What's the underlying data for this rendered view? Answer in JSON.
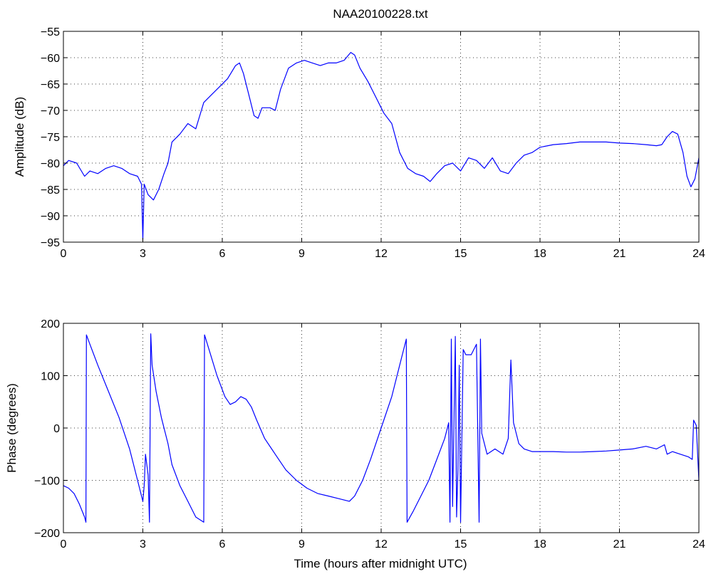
{
  "chart_data": [
    {
      "type": "line",
      "title": "NAA20100228.txt",
      "xlabel": "",
      "ylabel": "Amplitude (dB)",
      "xlim": [
        0,
        24
      ],
      "ylim": [
        -95,
        -55
      ],
      "xticks": [
        "0",
        "3",
        "6",
        "9",
        "12",
        "15",
        "18",
        "21",
        "24"
      ],
      "yticks": [
        "-55",
        "-60",
        "-65",
        "-70",
        "-75",
        "-80",
        "-85",
        "-90",
        "-95"
      ],
      "grid": true,
      "color": "#0000ff",
      "series": [
        {
          "x": [
            0,
            0.2,
            0.5,
            0.8,
            1.0,
            1.3,
            1.6,
            1.9,
            2.2,
            2.5,
            2.8,
            2.95,
            3.0,
            3.05,
            3.2,
            3.4,
            3.6,
            3.8,
            3.95,
            4.1,
            4.4,
            4.7,
            5.0,
            5.3,
            5.6,
            5.9,
            6.2,
            6.5,
            6.65,
            6.8,
            7.0,
            7.2,
            7.35,
            7.5,
            7.8,
            8.0,
            8.2,
            8.5,
            8.8,
            9.1,
            9.4,
            9.7,
            10.0,
            10.3,
            10.6,
            10.85,
            11.0,
            11.2,
            11.5,
            11.8,
            12.1,
            12.4,
            12.7,
            13.0,
            13.3,
            13.6,
            13.85,
            14.1,
            14.4,
            14.7,
            15.0,
            15.3,
            15.6,
            15.9,
            16.2,
            16.5,
            16.8,
            17.1,
            17.4,
            17.7,
            18.0,
            18.5,
            19.0,
            19.5,
            20.0,
            20.5,
            21.0,
            21.5,
            22.0,
            22.4,
            22.6,
            22.8,
            23.0,
            23.2,
            23.4,
            23.55,
            23.7,
            23.85,
            24.0
          ],
          "y": [
            -80.5,
            -79.5,
            -80.0,
            -82.5,
            -81.5,
            -82.0,
            -81.0,
            -80.5,
            -81.0,
            -82.0,
            -82.5,
            -84.0,
            -94.5,
            -84.0,
            -86.0,
            -87.0,
            -85.0,
            -82.0,
            -80.0,
            -76.0,
            -74.5,
            -72.5,
            -73.5,
            -68.5,
            -67.0,
            -65.5,
            -64.0,
            -61.5,
            -61.0,
            -63.0,
            -67.0,
            -71.0,
            -71.5,
            -69.5,
            -69.5,
            -70.0,
            -66.0,
            -62.0,
            -61.0,
            -60.5,
            -61.0,
            -61.5,
            -61.0,
            -61.0,
            -60.5,
            -59.0,
            -59.5,
            -62.0,
            -64.5,
            -67.5,
            -70.5,
            -72.5,
            -78.0,
            -81.0,
            -82.0,
            -82.5,
            -83.5,
            -82.0,
            -80.5,
            -80.0,
            -81.5,
            -79.0,
            -79.5,
            -81.0,
            -79.0,
            -81.5,
            -82.0,
            -80.0,
            -78.5,
            -78.0,
            -77.0,
            -76.5,
            -76.3,
            -76.0,
            -76.0,
            -76.0,
            -76.2,
            -76.3,
            -76.5,
            -76.7,
            -76.5,
            -75.0,
            -74.0,
            -74.5,
            -78.0,
            -82.5,
            -84.5,
            -83.0,
            -79.0
          ]
        }
      ]
    },
    {
      "type": "line",
      "title": "",
      "xlabel": "Time (hours after midnight UTC)",
      "ylabel": "Phase (degrees)",
      "xlim": [
        0,
        24
      ],
      "ylim": [
        -200,
        200
      ],
      "xticks": [
        "0",
        "3",
        "6",
        "9",
        "12",
        "15",
        "18",
        "21",
        "24"
      ],
      "yticks": [
        "200",
        "100",
        "0",
        "-100",
        "-200"
      ],
      "grid": true,
      "color": "#0000ff",
      "series": [
        {
          "x": [
            0,
            0.2,
            0.4,
            0.6,
            0.8,
            0.85,
            0.87,
            1.0,
            1.3,
            1.7,
            2.1,
            2.5,
            2.8,
            3.0,
            3.05,
            3.1,
            3.2,
            3.25,
            3.3,
            3.35,
            3.5,
            3.7,
            3.95,
            4.1,
            4.4,
            4.7,
            5.0,
            5.3,
            5.33,
            5.5,
            5.8,
            6.1,
            6.3,
            6.5,
            6.7,
            6.9,
            7.1,
            7.3,
            7.6,
            8.0,
            8.4,
            8.8,
            9.2,
            9.6,
            10.0,
            10.4,
            10.8,
            11.0,
            11.3,
            11.6,
            12.0,
            12.4,
            12.7,
            12.95,
            12.98,
            13.2,
            13.5,
            13.8,
            14.1,
            14.4,
            14.55,
            14.6,
            14.65,
            14.7,
            14.8,
            14.85,
            14.9,
            14.95,
            15.0,
            15.1,
            15.2,
            15.4,
            15.6,
            15.7,
            15.75,
            15.8,
            16.0,
            16.3,
            16.6,
            16.8,
            16.9,
            17.0,
            17.2,
            17.4,
            17.7,
            18.0,
            18.5,
            19.0,
            19.5,
            20.0,
            20.5,
            21.0,
            21.5,
            22.0,
            22.4,
            22.7,
            22.8,
            23.0,
            23.3,
            23.6,
            23.75,
            23.8,
            23.9,
            24.0
          ],
          "y": [
            -110,
            -115,
            -125,
            -145,
            -170,
            -180,
            178,
            160,
            120,
            70,
            20,
            -40,
            -100,
            -140,
            -110,
            -50,
            -90,
            -180,
            180,
            120,
            70,
            20,
            -30,
            -70,
            -110,
            -140,
            -170,
            -180,
            178,
            150,
            100,
            60,
            45,
            50,
            60,
            55,
            40,
            15,
            -20,
            -50,
            -80,
            -100,
            -115,
            -125,
            -130,
            -135,
            -140,
            -130,
            -100,
            -60,
            0,
            60,
            120,
            170,
            -180,
            -160,
            -130,
            -100,
            -60,
            -20,
            10,
            -180,
            170,
            -150,
            175,
            -170,
            -80,
            120,
            -180,
            150,
            140,
            140,
            160,
            -180,
            170,
            -10,
            -50,
            -40,
            -50,
            -20,
            130,
            10,
            -30,
            -40,
            -45,
            -45,
            -45,
            -46,
            -46,
            -45,
            -44,
            -42,
            -40,
            -35,
            -40,
            -32,
            -50,
            -45,
            -50,
            -55,
            -60,
            15,
            5,
            -100
          ]
        }
      ]
    }
  ]
}
